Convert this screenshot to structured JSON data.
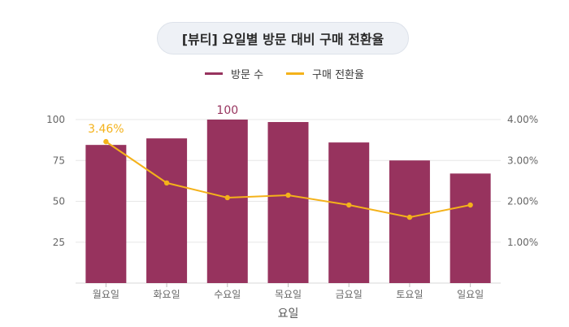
{
  "title": "[뷰티] 요일별 방문 대비 구매 전환율",
  "colors": {
    "bar": "#97335e",
    "line": "#f4b21a",
    "grid": "#e7e7e7"
  },
  "chart_data": {
    "type": "bar",
    "title": "[뷰티] 요일별 방문 대비 구매 전환율",
    "xlabel": "요일",
    "ylabel": "",
    "y2label": "",
    "categories": [
      "월요일",
      "화요일",
      "수요일",
      "목요일",
      "금요일",
      "토요일",
      "일요일"
    ],
    "ylim": [
      0,
      100
    ],
    "y2lim": [
      0,
      0.04
    ],
    "yticks": [
      25,
      50,
      75,
      100
    ],
    "y2ticks": [
      0.01,
      0.02,
      0.03,
      0.04
    ],
    "y2tick_labels": [
      "1.00%",
      "2.00%",
      "3.00%",
      "4.00%"
    ],
    "grid": true,
    "legend_position": "top",
    "series": [
      {
        "name": "방문 수",
        "type": "bar",
        "axis": "left",
        "values": [
          84.5,
          88.5,
          100,
          98.5,
          86,
          75,
          67
        ]
      },
      {
        "name": "구매 전환율",
        "type": "line",
        "axis": "right",
        "values": [
          0.0346,
          0.0245,
          0.0209,
          0.0215,
          0.0191,
          0.0161,
          0.0191
        ]
      }
    ],
    "annotations": [
      {
        "series": "방문 수",
        "category": "수요일",
        "text": "100"
      },
      {
        "series": "구매 전환율",
        "category": "월요일",
        "text": "3.46%"
      }
    ]
  }
}
